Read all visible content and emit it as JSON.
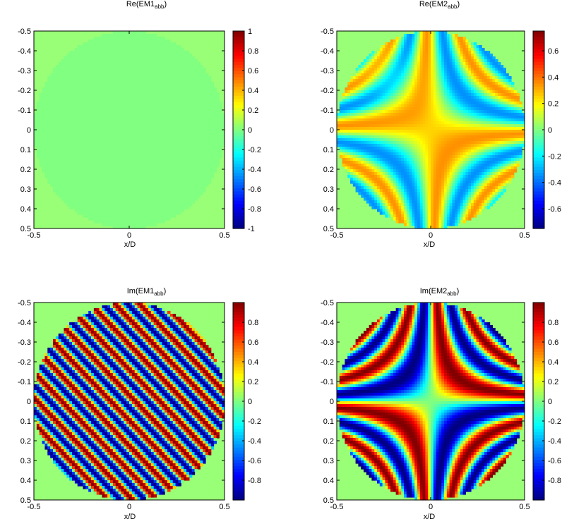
{
  "chart_data": [
    {
      "type": "heatmap",
      "title_main": "Re(EM1",
      "title_sub": "abb",
      "title_close": ")",
      "xlabel": "x/D",
      "ylabel": "",
      "xlim": [
        -0.5,
        0.5
      ],
      "ylim": [
        -0.5,
        0.5
      ],
      "x_ticks": [
        "-0.5",
        "0",
        "0.5"
      ],
      "y_ticks": [
        "-0.5",
        "-0.4",
        "-0.3",
        "-0.2",
        "-0.1",
        "0",
        "0.1",
        "0.2",
        "0.3",
        "0.4",
        "0.5"
      ],
      "field": "constant zero",
      "aperture_radius": 0.5,
      "clim": [
        -1,
        1
      ],
      "colorbar_ticks": [
        "1",
        "0.8",
        "0.6",
        "0.4",
        "0.2",
        "0",
        "-0.2",
        "-0.4",
        "-0.6",
        "-0.8",
        "-1"
      ],
      "colorbar_values": [
        1,
        0.8,
        0.6,
        0.4,
        0.2,
        0,
        -0.2,
        -0.4,
        -0.6,
        -0.8,
        -1
      ]
    },
    {
      "type": "heatmap",
      "title_main": "Re(EM2",
      "title_sub": "abb",
      "title_close": ")",
      "xlabel": "x/D",
      "ylabel": "",
      "xlim": [
        -0.5,
        0.5
      ],
      "ylim": [
        -0.5,
        0.5
      ],
      "x_ticks": [
        "-0.5",
        "0",
        "0.5"
      ],
      "y_ticks": [
        "-0.5",
        "-0.4",
        "-0.3",
        "-0.2",
        "-0.1",
        "0",
        "0.1",
        "0.2",
        "0.3",
        "0.4",
        "0.5"
      ],
      "field": "hyperbolic fringe pattern (weak real part)",
      "aperture_radius": 0.5,
      "clim": [
        -0.75,
        0.75
      ],
      "colorbar_ticks": [
        "0.6",
        "0.4",
        "0.2",
        "0",
        "-0.2",
        "-0.4",
        "-0.6"
      ],
      "colorbar_values": [
        0.6,
        0.4,
        0.2,
        0,
        -0.2,
        -0.4,
        -0.6
      ]
    },
    {
      "type": "heatmap",
      "title_main": "Im(EM1",
      "title_sub": "abb",
      "title_close": ")",
      "xlabel": "x/D",
      "ylabel": "",
      "xlim": [
        -0.5,
        0.5
      ],
      "ylim": [
        -0.5,
        0.5
      ],
      "x_ticks": [
        "-0.5",
        "0",
        "0.5"
      ],
      "y_ticks": [
        "-0.5",
        "-0.4",
        "-0.3",
        "-0.2",
        "-0.1",
        "0",
        "0.1",
        "0.2",
        "0.3",
        "0.4",
        "0.5"
      ],
      "field": "tilted linear fringes (sine of x - y)",
      "aperture_radius": 0.5,
      "clim": [
        -1,
        1
      ],
      "colorbar_ticks": [
        "0.8",
        "0.6",
        "0.4",
        "0.2",
        "0",
        "-0.2",
        "-0.4",
        "-0.6",
        "-0.8"
      ],
      "colorbar_values": [
        0.8,
        0.6,
        0.4,
        0.2,
        0,
        -0.2,
        -0.4,
        -0.6,
        -0.8
      ]
    },
    {
      "type": "heatmap",
      "title_main": "Im(EM2",
      "title_sub": "abb",
      "title_close": ")",
      "xlabel": "x/D",
      "ylabel": "",
      "xlim": [
        -0.5,
        0.5
      ],
      "ylim": [
        -0.5,
        0.5
      ],
      "x_ticks": [
        "-0.5",
        "0",
        "0.5"
      ],
      "y_ticks": [
        "-0.5",
        "-0.4",
        "-0.3",
        "-0.2",
        "-0.1",
        "0",
        "0.1",
        "0.2",
        "0.3",
        "0.4",
        "0.5"
      ],
      "field": "hyperbolic fringe pattern (sine of x*y)",
      "aperture_radius": 0.5,
      "clim": [
        -1,
        1
      ],
      "colorbar_ticks": [
        "0.8",
        "0.6",
        "0.4",
        "0.2",
        "0",
        "-0.2",
        "-0.4",
        "-0.6",
        "-0.8"
      ],
      "colorbar_values": [
        0.8,
        0.6,
        0.4,
        0.2,
        0,
        -0.2,
        -0.4,
        -0.6,
        -0.8
      ]
    }
  ],
  "colors": {
    "background_field": "#99ff77",
    "axis": "#000000"
  }
}
